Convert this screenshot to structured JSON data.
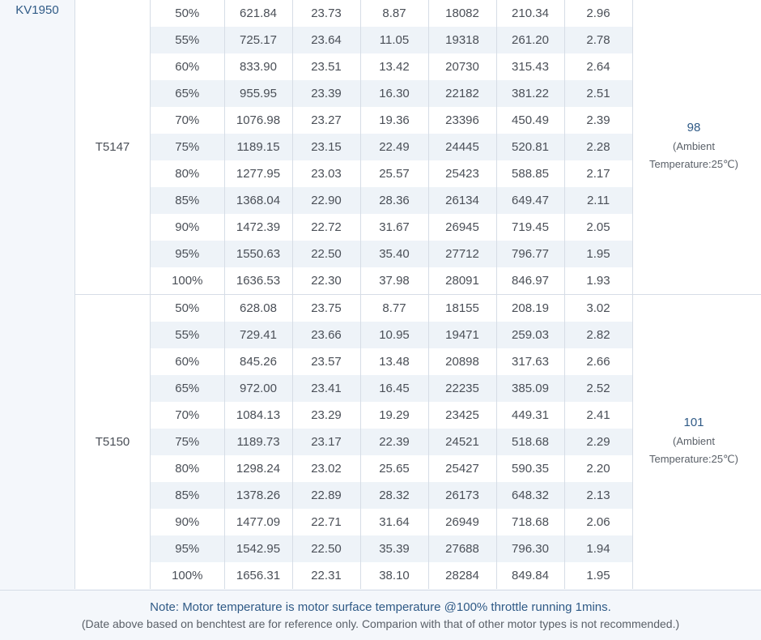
{
  "kv_label": "KV1950",
  "ambient_line1": "(Ambient",
  "ambient_line2": "Temperature:25℃)",
  "groups": [
    {
      "prop": "T5147",
      "temp": "98",
      "rows": [
        [
          "50%",
          "621.84",
          "23.73",
          "8.87",
          "18082",
          "210.34",
          "2.96"
        ],
        [
          "55%",
          "725.17",
          "23.64",
          "11.05",
          "19318",
          "261.20",
          "2.78"
        ],
        [
          "60%",
          "833.90",
          "23.51",
          "13.42",
          "20730",
          "315.43",
          "2.64"
        ],
        [
          "65%",
          "955.95",
          "23.39",
          "16.30",
          "22182",
          "381.22",
          "2.51"
        ],
        [
          "70%",
          "1076.98",
          "23.27",
          "19.36",
          "23396",
          "450.49",
          "2.39"
        ],
        [
          "75%",
          "1189.15",
          "23.15",
          "22.49",
          "24445",
          "520.81",
          "2.28"
        ],
        [
          "80%",
          "1277.95",
          "23.03",
          "25.57",
          "25423",
          "588.85",
          "2.17"
        ],
        [
          "85%",
          "1368.04",
          "22.90",
          "28.36",
          "26134",
          "649.47",
          "2.11"
        ],
        [
          "90%",
          "1472.39",
          "22.72",
          "31.67",
          "26945",
          "719.45",
          "2.05"
        ],
        [
          "95%",
          "1550.63",
          "22.50",
          "35.40",
          "27712",
          "796.77",
          "1.95"
        ],
        [
          "100%",
          "1636.53",
          "22.30",
          "37.98",
          "28091",
          "846.97",
          "1.93"
        ]
      ]
    },
    {
      "prop": "T5150",
      "temp": "101",
      "rows": [
        [
          "50%",
          "628.08",
          "23.75",
          "8.77",
          "18155",
          "208.19",
          "3.02"
        ],
        [
          "55%",
          "729.41",
          "23.66",
          "10.95",
          "19471",
          "259.03",
          "2.82"
        ],
        [
          "60%",
          "845.26",
          "23.57",
          "13.48",
          "20898",
          "317.63",
          "2.66"
        ],
        [
          "65%",
          "972.00",
          "23.41",
          "16.45",
          "22235",
          "385.09",
          "2.52"
        ],
        [
          "70%",
          "1084.13",
          "23.29",
          "19.29",
          "23425",
          "449.31",
          "2.41"
        ],
        [
          "75%",
          "1189.73",
          "23.17",
          "22.39",
          "24521",
          "518.68",
          "2.29"
        ],
        [
          "80%",
          "1298.24",
          "23.02",
          "25.65",
          "25427",
          "590.35",
          "2.20"
        ],
        [
          "85%",
          "1378.26",
          "22.89",
          "28.32",
          "26173",
          "648.32",
          "2.13"
        ],
        [
          "90%",
          "1477.09",
          "22.71",
          "31.64",
          "26949",
          "718.68",
          "2.06"
        ],
        [
          "95%",
          "1542.95",
          "22.50",
          "35.39",
          "27688",
          "796.30",
          "1.94"
        ],
        [
          "100%",
          "1656.31",
          "22.31",
          "38.10",
          "28284",
          "849.84",
          "1.95"
        ]
      ]
    }
  ],
  "footer": {
    "note": "Note: Motor temperature is motor surface temperature @100% throttle running 1mins.",
    "disclaimer": "(Date above based on benchtest are for reference only. Comparion with that of other motor types is not recommended.)"
  }
}
